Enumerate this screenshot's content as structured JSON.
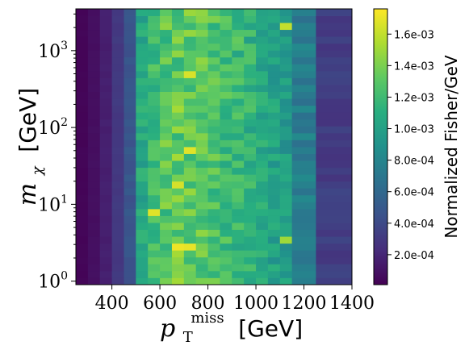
{
  "chart_data": {
    "type": "heatmap",
    "title": "",
    "xlabel_symbol": "p",
    "xlabel_sub": "T",
    "xlabel_sup": "miss",
    "xlabel_unit": "[GeV]",
    "ylabel_symbol": "m",
    "ylabel_sub": "χ",
    "ylabel_unit": "[GeV]",
    "x_scale": "linear",
    "y_scale": "log",
    "xlim": [
      250,
      1400
    ],
    "ylim": [
      0.9,
      3500
    ],
    "x_ticks": [
      400,
      600,
      800,
      1000,
      1200,
      1400
    ],
    "x_tick_labels": [
      "400",
      "600",
      "800",
      "1000",
      "1200",
      "1400"
    ],
    "y_ticks": [
      1,
      10,
      100,
      1000
    ],
    "y_tick_labels": [
      {
        "base": "10",
        "exp": "0"
      },
      {
        "base": "10",
        "exp": "1"
      },
      {
        "base": "10",
        "exp": "2"
      },
      {
        "base": "10",
        "exp": "3"
      }
    ],
    "x_bin_edges": [
      250,
      300,
      350,
      400,
      450,
      500,
      550,
      600,
      650,
      700,
      750,
      800,
      850,
      900,
      950,
      1000,
      1050,
      1100,
      1150,
      1250,
      1400
    ],
    "n_y_bins": 40,
    "colormap": "viridis",
    "colorbar": {
      "label": "Normalized Fisher/GeV",
      "range": [
        1e-05,
        0.00176
      ],
      "ticks": [
        0.0002,
        0.0004,
        0.0006,
        0.0008,
        0.001,
        0.0012,
        0.0014,
        0.0016
      ],
      "tick_labels": [
        "2.0e-04",
        "4.0e-04",
        "6.0e-04",
        "8.0e-04",
        "1.0e-03",
        "1.2e-03",
        "1.4e-03",
        "1.6e-03"
      ]
    },
    "column_mean_values": [
      3e-05,
      8e-05,
      0.00016,
      0.0003,
      0.00047,
      0.00105,
      0.0012,
      0.00128,
      0.00132,
      0.00133,
      0.0013,
      0.00126,
      0.00121,
      0.00118,
      0.00113,
      0.00105,
      0.001,
      0.00097,
      0.00075,
      0.00033
    ],
    "column_spread": [
      8e-06,
      1e-05,
      1.5e-05,
      2e-05,
      4e-05,
      0.00012,
      0.00015,
      0.00018,
      0.0002,
      0.00018,
      0.00017,
      0.00016,
      0.00015,
      0.00016,
      0.00015,
      0.00013,
      0.00014,
      0.00013,
      0.0001,
      6e-05
    ],
    "hot_cells": [
      {
        "x": 675,
        "y": 2.6,
        "value": 0.00172
      },
      {
        "x": 725,
        "y": 2.9,
        "value": 0.0017
      },
      {
        "x": 575,
        "y": 8.7,
        "value": 0.00168
      },
      {
        "x": 675,
        "y": 17,
        "value": 0.00165
      },
      {
        "x": 725,
        "y": 48,
        "value": 0.00168
      },
      {
        "x": 725,
        "y": 520,
        "value": 0.00166
      },
      {
        "x": 1125,
        "y": 2200,
        "value": 0.0016
      },
      {
        "x": 1125,
        "y": 3.5,
        "value": 0.0015
      }
    ]
  }
}
